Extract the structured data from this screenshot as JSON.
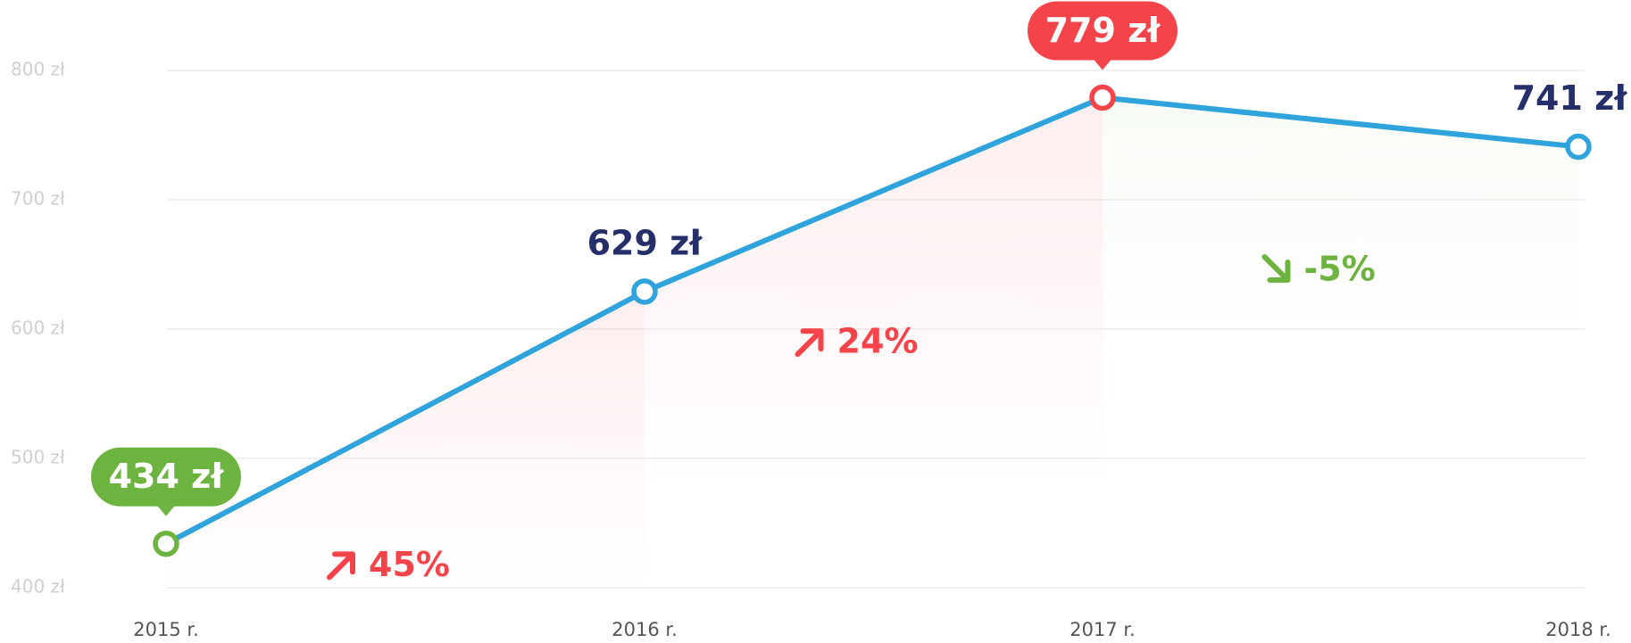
{
  "chart_data": {
    "type": "line",
    "categories": [
      "2015 r.",
      "2016 r.",
      "2017 r.",
      "2018 r."
    ],
    "series": [
      {
        "color": "#2fa3dc",
        "values": [
          434,
          629,
          779,
          741
        ],
        "value_labels": [
          "434 zł",
          "629 zł",
          "779 zł",
          "741 zł"
        ],
        "point_colors": [
          "#6db33f",
          "#2fa3dc",
          "#f5434a",
          "#2fa3dc"
        ]
      }
    ],
    "ylim": [
      400,
      800
    ],
    "yticks": [
      {
        "value": 400,
        "label": "400 zł"
      },
      {
        "value": 500,
        "label": "500 zł"
      },
      {
        "value": 600,
        "label": "600 zł"
      },
      {
        "value": 700,
        "label": "700 zł"
      },
      {
        "value": 800,
        "label": "800 zł"
      }
    ],
    "grid": true,
    "annotations": [
      {
        "text": "45%",
        "direction": "up",
        "color": "#f5434a"
      },
      {
        "text": "24%",
        "direction": "up",
        "color": "#f5434a"
      },
      {
        "text": "-5%",
        "direction": "down",
        "color": "#6db33f"
      }
    ]
  }
}
